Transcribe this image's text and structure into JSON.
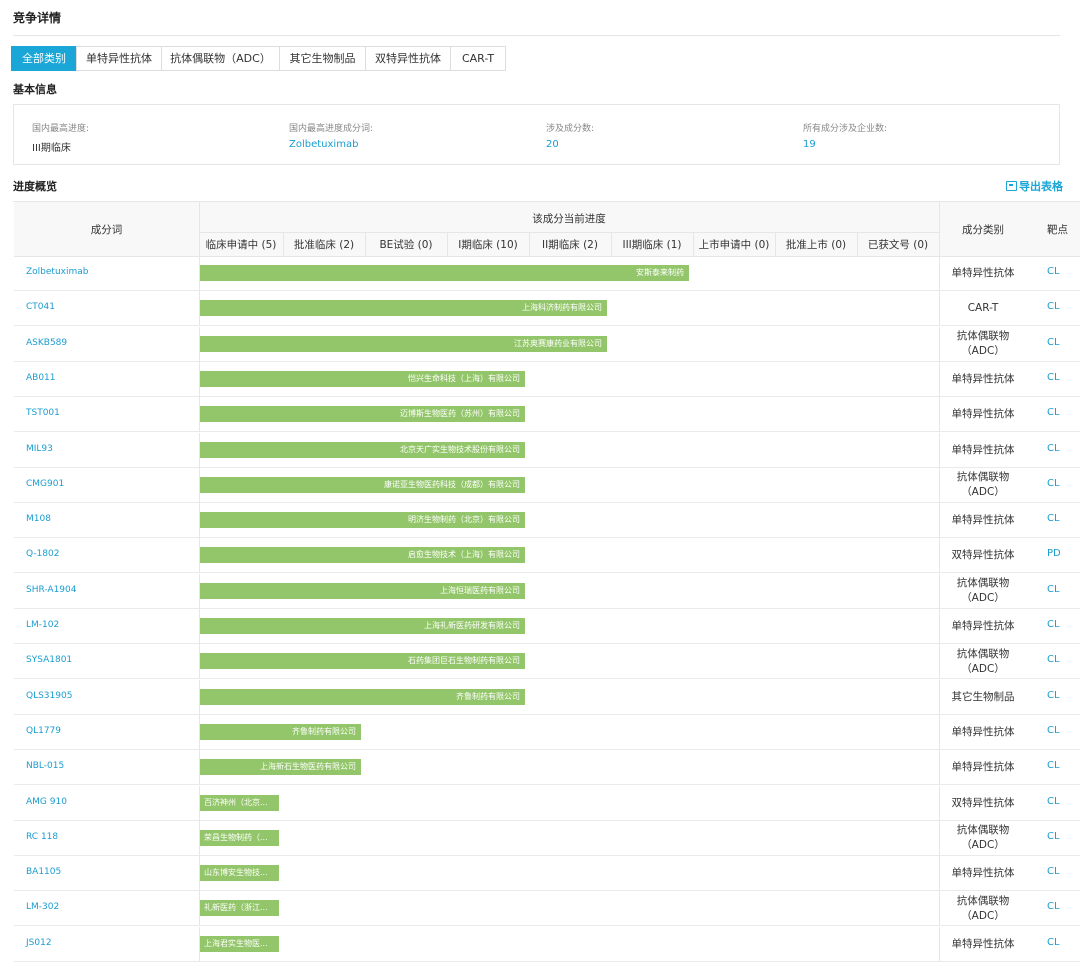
{
  "header": {
    "title": "竞争详情"
  },
  "tabs": [
    {
      "label": "全部类别",
      "active": true
    },
    {
      "label": "单特异性抗体"
    },
    {
      "label": "抗体偶联物（ADC）"
    },
    {
      "label": "其它生物制品"
    },
    {
      "label": "双特异性抗体"
    },
    {
      "label": "CAR-T"
    }
  ],
  "basic_info": {
    "title": "基本信息",
    "items": [
      {
        "label": "国内最高进度:",
        "value": "III期临床"
      },
      {
        "label": "国内最高进度成分词:",
        "value": "Zolbetuximab"
      },
      {
        "label": "涉及成分数:",
        "value": "20"
      },
      {
        "label": "所有成分涉及企业数:",
        "value": "19"
      }
    ]
  },
  "progress": {
    "title": "进度概览",
    "export_label": "导出表格",
    "columns": {
      "name": "成分词",
      "progress_group": "该成分当前进度",
      "category": "成分类别",
      "target": "靶点"
    },
    "stages": [
      "临床申请中 (5)",
      "批准临床 (2)",
      "BE试验 (0)",
      "I期临床 (10)",
      "II期临床 (2)",
      "III期临床 (1)",
      "上市申请中 (0)",
      "批准上市 (0)",
      "已获文号 (0)"
    ],
    "rows": [
      {
        "name": "Zolbetuximab",
        "company": "安斯泰来制药",
        "stage_level": 6,
        "category": "单特异性抗体",
        "target": "CL"
      },
      {
        "name": "CT041",
        "company": "上海科济制药有限公司",
        "stage_level": 5,
        "category": "CAR-T",
        "target": "CL"
      },
      {
        "name": "ASKB589",
        "company": "江苏奥赛康药业有限公司",
        "stage_level": 5,
        "category": "抗体偶联物（ADC）",
        "target": "CL"
      },
      {
        "name": "AB011",
        "company": "恺兴生命科技（上海）有限公司",
        "stage_level": 4,
        "category": "单特异性抗体",
        "target": "CL"
      },
      {
        "name": "TST001",
        "company": "迈博斯生物医药（苏州）有限公司",
        "stage_level": 4,
        "category": "单特异性抗体",
        "target": "CL"
      },
      {
        "name": "MIL93",
        "company": "北京天广实生物技术股份有限公司",
        "stage_level": 4,
        "category": "单特异性抗体",
        "target": "CL"
      },
      {
        "name": "CMG901",
        "company": "康诺亚生物医药科技（成都）有限公司",
        "stage_level": 4,
        "category": "抗体偶联物（ADC）",
        "target": "CL"
      },
      {
        "name": "M108",
        "company": "明济生物制药（北京）有限公司",
        "stage_level": 4,
        "category": "单特异性抗体",
        "target": "CL"
      },
      {
        "name": "Q-1802",
        "company": "启愈生物技术（上海）有限公司",
        "stage_level": 4,
        "category": "双特异性抗体",
        "target": "PD"
      },
      {
        "name": "SHR-A1904",
        "company": "上海恒瑞医药有限公司",
        "stage_level": 4,
        "category": "抗体偶联物（ADC）",
        "target": "CL"
      },
      {
        "name": "LM-102",
        "company": "上海礼新医药研发有限公司",
        "stage_level": 4,
        "category": "单特异性抗体",
        "target": "CL"
      },
      {
        "name": "SYSA1801",
        "company": "石药集团巨石生物制药有限公司",
        "stage_level": 4,
        "category": "抗体偶联物（ADC）",
        "target": "CL"
      },
      {
        "name": "QLS31905",
        "company": "齐鲁制药有限公司",
        "stage_level": 4,
        "category": "其它生物制品",
        "target": "CL"
      },
      {
        "name": "QL1779",
        "company": "齐鲁制药有限公司",
        "stage_level": 2,
        "category": "单特异性抗体",
        "target": "CL"
      },
      {
        "name": "NBL-015",
        "company": "上海新石生物医药有限公司",
        "stage_level": 2,
        "category": "单特异性抗体",
        "target": "CL"
      },
      {
        "name": "AMG 910",
        "company": "百济神州（北京...",
        "stage_level": 1,
        "category": "双特异性抗体",
        "target": "CL"
      },
      {
        "name": "RC 118",
        "company": "荣昌生物制药（...",
        "stage_level": 1,
        "category": "抗体偶联物（ADC）",
        "target": "CL"
      },
      {
        "name": "BA1105",
        "company": "山东博安生物技...",
        "stage_level": 1,
        "category": "单特异性抗体",
        "target": "CL"
      },
      {
        "name": "LM-302",
        "company": "礼新医药（浙江...",
        "stage_level": 1,
        "category": "抗体偶联物（ADC）",
        "target": "CL"
      },
      {
        "name": "JS012",
        "company": "上海君实生物医...",
        "stage_level": 1,
        "category": "单特异性抗体",
        "target": "CL"
      }
    ]
  }
}
